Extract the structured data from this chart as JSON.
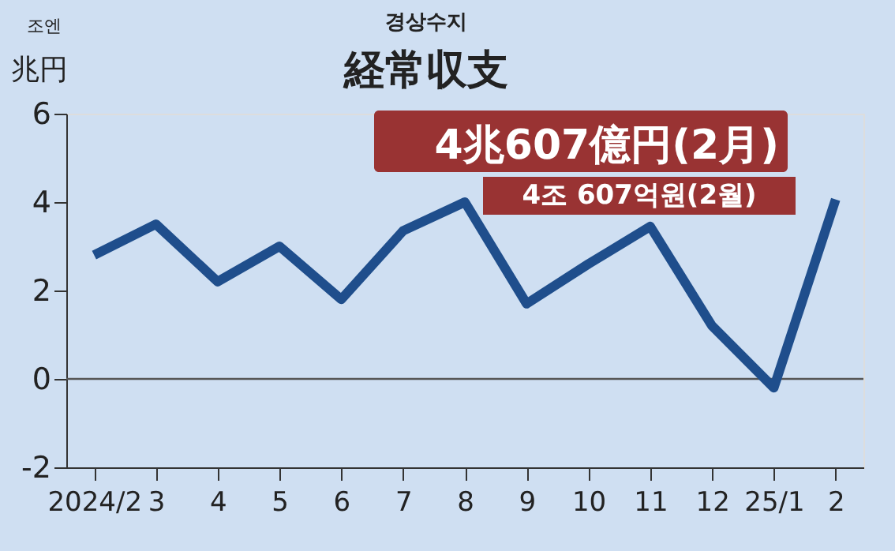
{
  "chart_data": {
    "type": "line",
    "title": "経常収支",
    "subtitle": "경상수지",
    "ylabel": "兆円",
    "categories": [
      "2024/2",
      "3",
      "4",
      "5",
      "6",
      "7",
      "8",
      "9",
      "10",
      "11",
      "12",
      "25/1",
      "2"
    ],
    "series": [
      {
        "color": "#1f4e8c",
        "values": [
          2.8,
          3.5,
          2.2,
          3.0,
          1.8,
          3.35,
          4.0,
          1.7,
          2.6,
          3.45,
          1.2,
          -0.2,
          4.06
        ]
      }
    ],
    "ylim": [
      -2,
      6
    ],
    "yticks": [
      -2,
      0,
      2,
      4,
      6
    ],
    "grid": false,
    "marker": "none",
    "line_style": "solid",
    "ref_lines": [
      {
        "axis": "y",
        "value": 0,
        "color": "#555555"
      }
    ],
    "annotations": [
      "조엔",
      {
        "text": "4兆607億円(2月)",
        "x": "2",
        "y": 4.06
      },
      "4조 607억원(2월)"
    ]
  }
}
